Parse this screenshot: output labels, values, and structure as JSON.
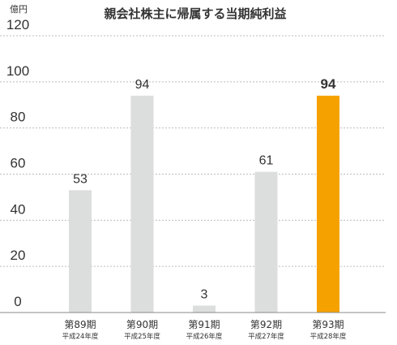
{
  "chart_data": {
    "type": "bar",
    "title": "親会社株主に帰属する当期純利益",
    "unit": "億円",
    "ylim": [
      0,
      120
    ],
    "yticks": [
      "0",
      "20",
      "40",
      "60",
      "80",
      "100",
      "120"
    ],
    "categories": [
      "第89期",
      "第90期",
      "第91期",
      "第92期",
      "第93期"
    ],
    "subcategories": [
      "平成24年度",
      "平成25年度",
      "平成26年度",
      "平成27年度",
      "平成28年度"
    ],
    "values": [
      53,
      94,
      3,
      61,
      94
    ],
    "highlight_index": 4,
    "grid": true
  },
  "colors": {
    "bar": "#dcdddd",
    "highlight": "#f5a200",
    "text": "#333333"
  }
}
